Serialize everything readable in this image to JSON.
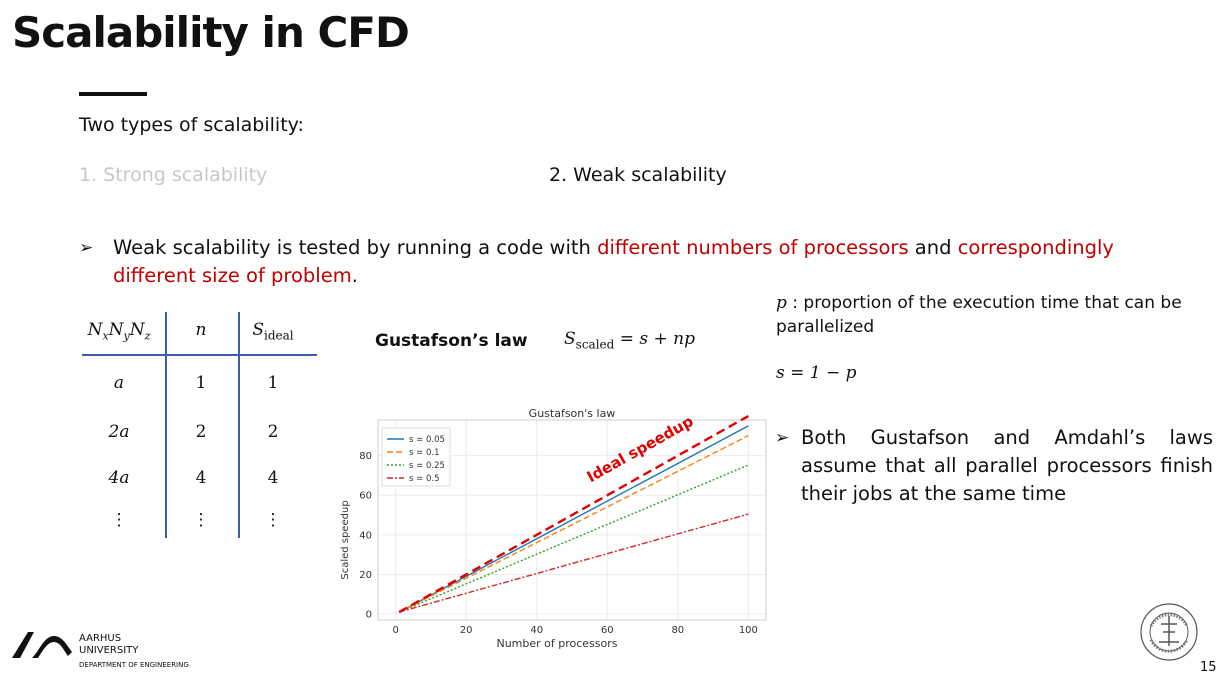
{
  "slide": {
    "title": "Scalability in CFD",
    "intro": "Two types of scalability:",
    "type1": "1. Strong scalability",
    "type2": "2. Weak scalability",
    "bullet1": {
      "part1": "Weak scalability is tested by running a code with ",
      "highlight1": "different numbers of processors",
      "part2": " and ",
      "highlight2": "correspondingly different size of problem",
      "part3": "."
    },
    "table": {
      "headers": [
        "NxNyNz",
        "n",
        "Sideal"
      ],
      "rows": [
        [
          "a",
          "1",
          "1"
        ],
        [
          "2a",
          "2",
          "2"
        ],
        [
          "4a",
          "4",
          "4"
        ],
        [
          "⋮",
          "⋮",
          "⋮"
        ]
      ]
    },
    "gustafson_label": "Gustafson’s law",
    "p_symbol": "p",
    "p_definition": ": proportion of the execution time that can be parallelized",
    "s_equation": "s = 1 − p",
    "bullet2": "Both Gustafson and Amdahl’s laws assume that all parallel processors finish their jobs at the same time",
    "footer": {
      "university_line1": "AARHUS",
      "university_line2": "UNIVERSITY",
      "department": "DEPARTMENT OF ENGINEERING",
      "page_number": "15"
    },
    "colors": {
      "red": "#c00000",
      "table_lines": "#3a5fa8"
    }
  },
  "chart_data": {
    "type": "line",
    "title": "Gustafson's law",
    "xlabel": "Number of processors",
    "ylabel": "Scaled speedup",
    "xlim": [
      -5,
      105
    ],
    "ylim": [
      -3,
      98
    ],
    "xticks": [
      0,
      20,
      40,
      60,
      80,
      100
    ],
    "yticks": [
      0,
      20,
      40,
      60,
      80
    ],
    "grid": true,
    "legend": "top-left",
    "annotation": "Ideal speedup",
    "x": [
      1,
      100
    ],
    "series": [
      {
        "name": "s = 0.05",
        "values": [
          1,
          95.05
        ],
        "color": "#1f77b4",
        "dash": "solid"
      },
      {
        "name": "s = 0.1",
        "values": [
          1,
          90.1
        ],
        "color": "#ff7f0e",
        "dash": "dashed"
      },
      {
        "name": "s = 0.25",
        "values": [
          1,
          75.25
        ],
        "color": "#2ca02c",
        "dash": "dotted"
      },
      {
        "name": "s = 0.5",
        "values": [
          1,
          50.5
        ],
        "color": "#d62728",
        "dash": "dashdot"
      }
    ],
    "ideal": {
      "values": [
        1,
        100
      ],
      "color": "#e00000"
    }
  }
}
